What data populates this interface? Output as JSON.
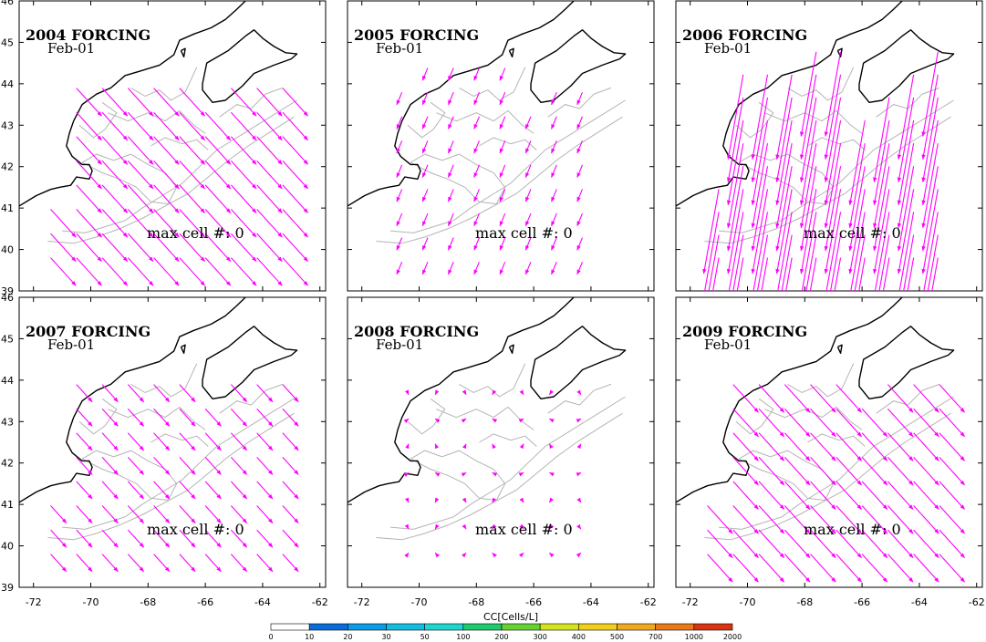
{
  "figure": {
    "colorbar_title": "CC[Cells/L]",
    "colorbar_ticks": [
      "0",
      "10",
      "20",
      "30",
      "50",
      "100",
      "200",
      "300",
      "400",
      "500",
      "700",
      "1000",
      "2000"
    ],
    "colorbar_colors": [
      "#ffffff",
      "#0a6cd8",
      "#0c9be6",
      "#13bde0",
      "#1fd6cf",
      "#20c96c",
      "#66d232",
      "#d2e41b",
      "#f1cf1b",
      "#f0a91e",
      "#e8791a",
      "#d93412"
    ],
    "lon_ticks": [
      "-72",
      "-70",
      "-68",
      "-66",
      "-64",
      "-62"
    ],
    "lat_ticks": [
      "39",
      "40",
      "41",
      "42",
      "43",
      "44",
      "45",
      "46"
    ],
    "colors": {
      "arrow": "#ff00ff",
      "coast": "#000000",
      "isobath": "#b4b4b4"
    }
  },
  "panels": [
    {
      "title": "2004 FORCING",
      "date": "Feb-01",
      "annotation": "max cell #: 0",
      "flow": "southeast",
      "strength": "moderate"
    },
    {
      "title": "2005 FORCING",
      "date": "Feb-01",
      "annotation": "max cell #: 0",
      "flow": "southwest",
      "strength": "weak"
    },
    {
      "title": "2006 FORCING",
      "date": "Feb-01",
      "annotation": "max cell #: 0",
      "flow": "south-southwest",
      "strength": "strong"
    },
    {
      "title": "2007 FORCING",
      "date": "Feb-01",
      "annotation": "max cell #: 0",
      "flow": "southeast",
      "strength": "weak"
    },
    {
      "title": "2008 FORCING",
      "date": "Feb-01",
      "annotation": "max cell #: 0",
      "flow": "variable",
      "strength": "very weak"
    },
    {
      "title": "2009 FORCING",
      "date": "Feb-01",
      "annotation": "max cell #: 0",
      "flow": "southeast",
      "strength": "moderate"
    }
  ]
}
